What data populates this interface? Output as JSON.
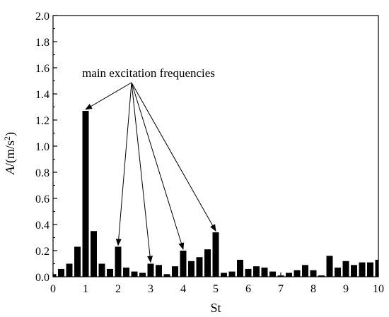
{
  "chart_data": {
    "type": "bar",
    "xlabel": "St",
    "ylabel_main": "A",
    "ylabel_unit": "/(m/s",
    "ylabel_exp": "2",
    "ylabel_close": ")",
    "xlim": [
      0,
      10
    ],
    "ylim": [
      0,
      2.0
    ],
    "xticks": [
      "0",
      "1",
      "2",
      "3",
      "4",
      "5",
      "6",
      "7",
      "8",
      "9",
      "10"
    ],
    "yticks": [
      "0.0",
      "0.2",
      "0.4",
      "0.6",
      "0.8",
      "1.0",
      "1.2",
      "1.4",
      "1.6",
      "1.8",
      "2.0"
    ],
    "grid": false,
    "x": [
      0.0,
      0.25,
      0.5,
      0.75,
      1.0,
      1.25,
      1.5,
      1.75,
      2.0,
      2.25,
      2.5,
      2.75,
      3.0,
      3.25,
      3.5,
      3.75,
      4.0,
      4.25,
      4.5,
      4.75,
      5.0,
      5.25,
      5.5,
      5.75,
      6.0,
      6.25,
      6.5,
      6.75,
      7.0,
      7.25,
      7.5,
      7.75,
      8.0,
      8.25,
      8.5,
      8.75,
      9.0,
      9.25,
      9.5,
      9.75,
      10.0
    ],
    "values": [
      0.02,
      0.06,
      0.1,
      0.23,
      1.27,
      0.35,
      0.1,
      0.06,
      0.23,
      0.07,
      0.04,
      0.03,
      0.1,
      0.09,
      0.02,
      0.08,
      0.2,
      0.12,
      0.15,
      0.21,
      0.34,
      0.03,
      0.04,
      0.13,
      0.06,
      0.08,
      0.07,
      0.04,
      0.01,
      0.03,
      0.05,
      0.09,
      0.05,
      0.01,
      0.16,
      0.07,
      0.12,
      0.09,
      0.11,
      0.11,
      0.13
    ],
    "annotation": {
      "text": "main  excitation frequencies",
      "targets": [
        {
          "x": 1.0,
          "y": 1.27
        },
        {
          "x": 2.0,
          "y": 0.23
        },
        {
          "x": 3.0,
          "y": 0.1
        },
        {
          "x": 4.0,
          "y": 0.2
        },
        {
          "x": 5.0,
          "y": 0.34
        }
      ]
    },
    "bar_color": "#000000"
  }
}
